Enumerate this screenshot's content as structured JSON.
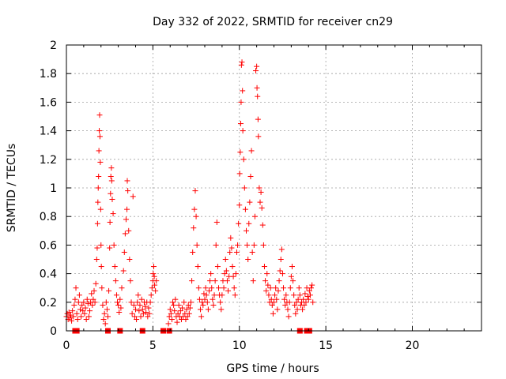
{
  "chart_data": {
    "type": "scatter",
    "title": "Day 332 of 2022, SRMTID for receiver cn29",
    "xlabel": "GPS time / hours",
    "ylabel": "SRMTID / TECUs",
    "xlim": [
      0,
      24
    ],
    "ylim": [
      0,
      2
    ],
    "xticks": [
      0,
      5,
      10,
      15,
      20
    ],
    "yticks": [
      0,
      0.2,
      0.4,
      0.6,
      0.8,
      1,
      1.2,
      1.4,
      1.6,
      1.8,
      2
    ],
    "grid": true,
    "marker": "+",
    "color": "#ff0000",
    "series": [
      {
        "name": "cn29",
        "points": [
          [
            0.0,
            0.1
          ],
          [
            0.05,
            0.12
          ],
          [
            0.1,
            0.08
          ],
          [
            0.15,
            0.13
          ],
          [
            0.2,
            0.09
          ],
          [
            0.25,
            0.11
          ],
          [
            0.3,
            0.07
          ],
          [
            0.35,
            0.14
          ],
          [
            0.4,
            0.1
          ],
          [
            0.45,
            0.18
          ],
          [
            0.5,
            0.22
          ],
          [
            0.55,
            0.3
          ],
          [
            0.6,
            0.12
          ],
          [
            0.65,
            0.08
          ],
          [
            0.7,
            0.2
          ],
          [
            0.75,
            0.25
          ],
          [
            0.8,
            0.15
          ],
          [
            0.85,
            0.1
          ],
          [
            0.9,
            0.18
          ],
          [
            0.95,
            0.14
          ],
          [
            1.0,
            0.2
          ],
          [
            1.05,
            0.12
          ],
          [
            1.1,
            0.16
          ],
          [
            1.15,
            0.08
          ],
          [
            1.2,
            0.22
          ],
          [
            1.25,
            0.19
          ],
          [
            1.3,
            0.1
          ],
          [
            1.35,
            0.14
          ],
          [
            1.4,
            0.2
          ],
          [
            1.45,
            0.26
          ],
          [
            1.5,
            0.18
          ],
          [
            1.55,
            0.22
          ],
          [
            1.6,
            0.28
          ],
          [
            1.65,
            0.2
          ],
          [
            1.7,
            0.33
          ],
          [
            1.75,
            0.5
          ],
          [
            1.78,
            0.58
          ],
          [
            1.8,
            0.75
          ],
          [
            1.82,
            0.9
          ],
          [
            1.84,
            1.0
          ],
          [
            1.86,
            1.08
          ],
          [
            1.88,
            1.26
          ],
          [
            1.9,
            1.4
          ],
          [
            1.92,
            1.51
          ],
          [
            1.94,
            1.36
          ],
          [
            1.96,
            1.18
          ],
          [
            1.98,
            0.85
          ],
          [
            2.0,
            0.6
          ],
          [
            2.02,
            0.45
          ],
          [
            2.05,
            0.3
          ],
          [
            2.1,
            0.18
          ],
          [
            2.15,
            0.08
          ],
          [
            2.2,
            0.12
          ],
          [
            2.25,
            0.05
          ],
          [
            2.3,
            0.2
          ],
          [
            2.35,
            0.15
          ],
          [
            2.4,
            0.1
          ],
          [
            2.45,
            0.28
          ],
          [
            2.5,
            0.58
          ],
          [
            2.52,
            0.76
          ],
          [
            2.55,
            0.96
          ],
          [
            2.57,
            1.08
          ],
          [
            2.6,
            1.14
          ],
          [
            2.62,
            1.05
          ],
          [
            2.65,
            0.92
          ],
          [
            2.7,
            0.82
          ],
          [
            2.75,
            0.6
          ],
          [
            2.8,
            0.45
          ],
          [
            2.85,
            0.35
          ],
          [
            2.9,
            0.25
          ],
          [
            2.95,
            0.2
          ],
          [
            3.0,
            0.18
          ],
          [
            3.05,
            0.13
          ],
          [
            3.1,
            0.22
          ],
          [
            3.15,
            0.16
          ],
          [
            3.2,
            0.3
          ],
          [
            3.3,
            0.42
          ],
          [
            3.35,
            0.55
          ],
          [
            3.4,
            0.68
          ],
          [
            3.45,
            0.78
          ],
          [
            3.5,
            0.85
          ],
          [
            3.52,
            1.05
          ],
          [
            3.55,
            0.98
          ],
          [
            3.6,
            0.7
          ],
          [
            3.65,
            0.5
          ],
          [
            3.7,
            0.35
          ],
          [
            3.75,
            0.2
          ],
          [
            3.8,
            0.12
          ],
          [
            3.85,
            0.94
          ],
          [
            3.9,
            0.18
          ],
          [
            3.95,
            0.1
          ],
          [
            4.0,
            0.15
          ],
          [
            4.05,
            0.08
          ],
          [
            4.1,
            0.2
          ],
          [
            4.15,
            0.25
          ],
          [
            4.2,
            0.14
          ],
          [
            4.25,
            0.18
          ],
          [
            4.3,
            0.1
          ],
          [
            4.35,
            0.22
          ],
          [
            4.4,
            0.15
          ],
          [
            4.45,
            0.12
          ],
          [
            4.5,
            0.2
          ],
          [
            4.55,
            0.17
          ],
          [
            4.6,
            0.13
          ],
          [
            4.65,
            0.2
          ],
          [
            4.7,
            0.1
          ],
          [
            4.75,
            0.16
          ],
          [
            4.8,
            0.12
          ],
          [
            4.85,
            0.2
          ],
          [
            4.9,
            0.25
          ],
          [
            4.95,
            0.3
          ],
          [
            5.0,
            0.35
          ],
          [
            5.02,
            0.4
          ],
          [
            5.05,
            0.45
          ],
          [
            5.08,
            0.38
          ],
          [
            5.1,
            0.32
          ],
          [
            5.15,
            0.28
          ],
          [
            5.2,
            0.35
          ],
          [
            5.9,
            0.05
          ],
          [
            5.95,
            0.1
          ],
          [
            6.0,
            0.15
          ],
          [
            6.05,
            0.12
          ],
          [
            6.1,
            0.08
          ],
          [
            6.15,
            0.2
          ],
          [
            6.2,
            0.18
          ],
          [
            6.25,
            0.14
          ],
          [
            6.3,
            0.22
          ],
          [
            6.35,
            0.1
          ],
          [
            6.4,
            0.06
          ],
          [
            6.45,
            0.12
          ],
          [
            6.5,
            0.18
          ],
          [
            6.55,
            0.1
          ],
          [
            6.6,
            0.14
          ],
          [
            6.65,
            0.08
          ],
          [
            6.7,
            0.16
          ],
          [
            6.75,
            0.1
          ],
          [
            6.8,
            0.2
          ],
          [
            6.85,
            0.12
          ],
          [
            6.9,
            0.08
          ],
          [
            6.95,
            0.15
          ],
          [
            7.0,
            0.1
          ],
          [
            7.05,
            0.18
          ],
          [
            7.1,
            0.12
          ],
          [
            7.15,
            0.16
          ],
          [
            7.2,
            0.2
          ],
          [
            7.25,
            0.35
          ],
          [
            7.3,
            0.55
          ],
          [
            7.35,
            0.72
          ],
          [
            7.4,
            0.85
          ],
          [
            7.45,
            0.98
          ],
          [
            7.5,
            0.8
          ],
          [
            7.55,
            0.6
          ],
          [
            7.6,
            0.45
          ],
          [
            7.65,
            0.3
          ],
          [
            7.7,
            0.22
          ],
          [
            7.75,
            0.15
          ],
          [
            7.8,
            0.1
          ],
          [
            7.85,
            0.2
          ],
          [
            7.9,
            0.18
          ],
          [
            7.95,
            0.26
          ],
          [
            8.0,
            0.22
          ],
          [
            8.05,
            0.3
          ],
          [
            8.1,
            0.25
          ],
          [
            8.15,
            0.2
          ],
          [
            8.2,
            0.15
          ],
          [
            8.25,
            0.28
          ],
          [
            8.3,
            0.35
          ],
          [
            8.35,
            0.4
          ],
          [
            8.4,
            0.3
          ],
          [
            8.45,
            0.22
          ],
          [
            8.5,
            0.18
          ],
          [
            8.55,
            0.25
          ],
          [
            8.6,
            0.35
          ],
          [
            8.65,
            0.6
          ],
          [
            8.7,
            0.76
          ],
          [
            8.75,
            0.45
          ],
          [
            8.8,
            0.3
          ],
          [
            8.85,
            0.25
          ],
          [
            8.9,
            0.2
          ],
          [
            8.95,
            0.15
          ],
          [
            9.0,
            0.25
          ],
          [
            9.05,
            0.35
          ],
          [
            9.1,
            0.3
          ],
          [
            9.15,
            0.4
          ],
          [
            9.2,
            0.5
          ],
          [
            9.25,
            0.42
          ],
          [
            9.3,
            0.35
          ],
          [
            9.35,
            0.28
          ],
          [
            9.4,
            0.38
          ],
          [
            9.45,
            0.55
          ],
          [
            9.5,
            0.65
          ],
          [
            9.55,
            0.58
          ],
          [
            9.6,
            0.45
          ],
          [
            9.65,
            0.38
          ],
          [
            9.7,
            0.3
          ],
          [
            9.75,
            0.25
          ],
          [
            9.8,
            0.4
          ],
          [
            9.85,
            0.55
          ],
          [
            9.9,
            0.6
          ],
          [
            9.95,
            0.75
          ],
          [
            10.0,
            0.88
          ],
          [
            10.02,
            1.1
          ],
          [
            10.05,
            1.25
          ],
          [
            10.08,
            1.45
          ],
          [
            10.1,
            1.6
          ],
          [
            10.12,
            1.86
          ],
          [
            10.15,
            1.88
          ],
          [
            10.18,
            1.68
          ],
          [
            10.2,
            1.4
          ],
          [
            10.25,
            1.2
          ],
          [
            10.3,
            1.0
          ],
          [
            10.35,
            0.85
          ],
          [
            10.4,
            0.7
          ],
          [
            10.45,
            0.6
          ],
          [
            10.5,
            0.5
          ],
          [
            10.55,
            0.75
          ],
          [
            10.6,
            0.9
          ],
          [
            10.65,
            1.08
          ],
          [
            10.7,
            1.26
          ],
          [
            10.75,
            0.55
          ],
          [
            10.8,
            0.35
          ],
          [
            10.85,
            0.6
          ],
          [
            10.9,
            0.8
          ],
          [
            10.95,
            1.82
          ],
          [
            11.0,
            1.85
          ],
          [
            11.02,
            1.7
          ],
          [
            11.05,
            1.64
          ],
          [
            11.08,
            1.48
          ],
          [
            11.1,
            1.36
          ],
          [
            11.15,
            1.0
          ],
          [
            11.2,
            0.9
          ],
          [
            11.25,
            0.97
          ],
          [
            11.3,
            0.86
          ],
          [
            11.35,
            0.74
          ],
          [
            11.4,
            0.6
          ],
          [
            11.45,
            0.45
          ],
          [
            11.5,
            0.35
          ],
          [
            11.55,
            0.28
          ],
          [
            11.6,
            0.4
          ],
          [
            11.65,
            0.32
          ],
          [
            11.7,
            0.25
          ],
          [
            11.75,
            0.2
          ],
          [
            11.8,
            0.3
          ],
          [
            11.85,
            0.22
          ],
          [
            11.9,
            0.18
          ],
          [
            11.95,
            0.12
          ],
          [
            12.0,
            0.2
          ],
          [
            12.05,
            0.25
          ],
          [
            12.1,
            0.3
          ],
          [
            12.15,
            0.22
          ],
          [
            12.2,
            0.15
          ],
          [
            12.25,
            0.28
          ],
          [
            12.3,
            0.35
          ],
          [
            12.35,
            0.42
          ],
          [
            12.4,
            0.5
          ],
          [
            12.45,
            0.57
          ],
          [
            12.5,
            0.4
          ],
          [
            12.55,
            0.3
          ],
          [
            12.6,
            0.22
          ],
          [
            12.65,
            0.18
          ],
          [
            12.7,
            0.25
          ],
          [
            12.75,
            0.2
          ],
          [
            12.8,
            0.15
          ],
          [
            12.85,
            0.1
          ],
          [
            12.9,
            0.2
          ],
          [
            12.95,
            0.3
          ],
          [
            13.0,
            0.38
          ],
          [
            13.05,
            0.45
          ],
          [
            13.1,
            0.35
          ],
          [
            13.15,
            0.25
          ],
          [
            13.2,
            0.18
          ],
          [
            13.25,
            0.12
          ],
          [
            13.3,
            0.2
          ],
          [
            13.35,
            0.15
          ],
          [
            13.4,
            0.22
          ],
          [
            13.45,
            0.3
          ],
          [
            13.5,
            0.25
          ],
          [
            13.55,
            0.18
          ],
          [
            13.6,
            0.2
          ],
          [
            13.65,
            0.15
          ],
          [
            13.7,
            0.22
          ],
          [
            13.75,
            0.18
          ],
          [
            13.8,
            0.26
          ],
          [
            13.85,
            0.2
          ],
          [
            13.9,
            0.3
          ],
          [
            13.95,
            0.24
          ],
          [
            14.0,
            0.22
          ],
          [
            14.05,
            0.28
          ],
          [
            14.1,
            0.25
          ],
          [
            14.15,
            0.3
          ],
          [
            14.2,
            0.32
          ],
          [
            14.25,
            0.2
          ],
          [
            0.5,
            0.0
          ],
          [
            0.6,
            0.0
          ],
          [
            2.4,
            0.0
          ],
          [
            3.1,
            0.0
          ],
          [
            4.4,
            0.0
          ],
          [
            5.6,
            0.0
          ],
          [
            5.95,
            0.0
          ],
          [
            13.5,
            0.0
          ],
          [
            13.9,
            0.0
          ],
          [
            14.05,
            0.0
          ]
        ]
      }
    ]
  }
}
